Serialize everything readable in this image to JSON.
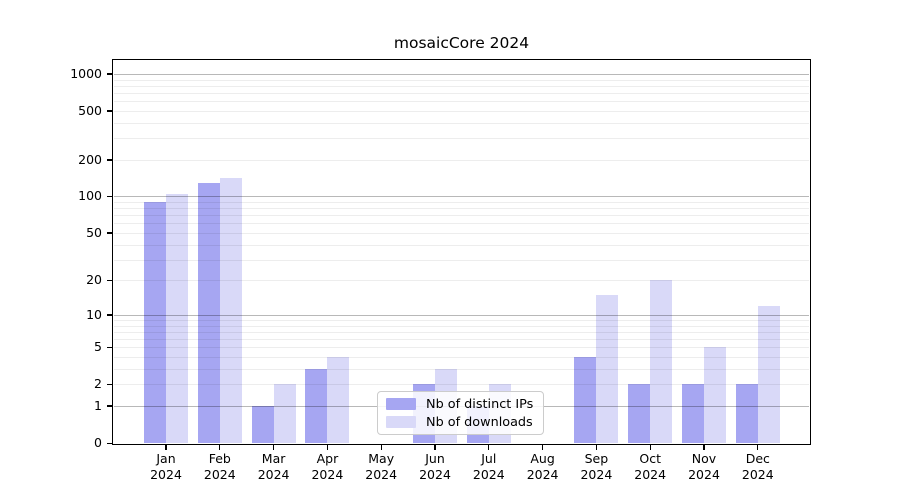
{
  "chart_data": {
    "type": "bar",
    "title": "mosaicCore 2024",
    "x": {
      "categories": [
        "Jan",
        "Feb",
        "Mar",
        "Apr",
        "May",
        "Jun",
        "Jul",
        "Aug",
        "Sep",
        "Oct",
        "Nov",
        "Dec"
      ],
      "sub_label": "2024"
    },
    "series": [
      {
        "name": "Nb of distinct IPs",
        "color": "#a6a6f2",
        "values": [
          90,
          128,
          1,
          3,
          0,
          2,
          1,
          0,
          4,
          2,
          2,
          2
        ]
      },
      {
        "name": "Nb of downloads",
        "color": "#d9d9f8",
        "values": [
          105,
          142,
          2,
          4,
          0,
          3,
          2,
          0,
          15,
          20,
          5,
          12
        ]
      }
    ],
    "y_axis": {
      "scale": "log1p",
      "tick_values": [
        0,
        1,
        2,
        5,
        10,
        20,
        50,
        100,
        200,
        500,
        1000
      ],
      "ylim": [
        0,
        1000
      ]
    },
    "grid": {
      "major": [
        1,
        10,
        100,
        1000
      ],
      "minor_per_decade": [
        2,
        3,
        4,
        5,
        6,
        7,
        8,
        9
      ],
      "decades": [
        1,
        10,
        100
      ]
    },
    "legend": {
      "position": "lower center inside"
    }
  }
}
